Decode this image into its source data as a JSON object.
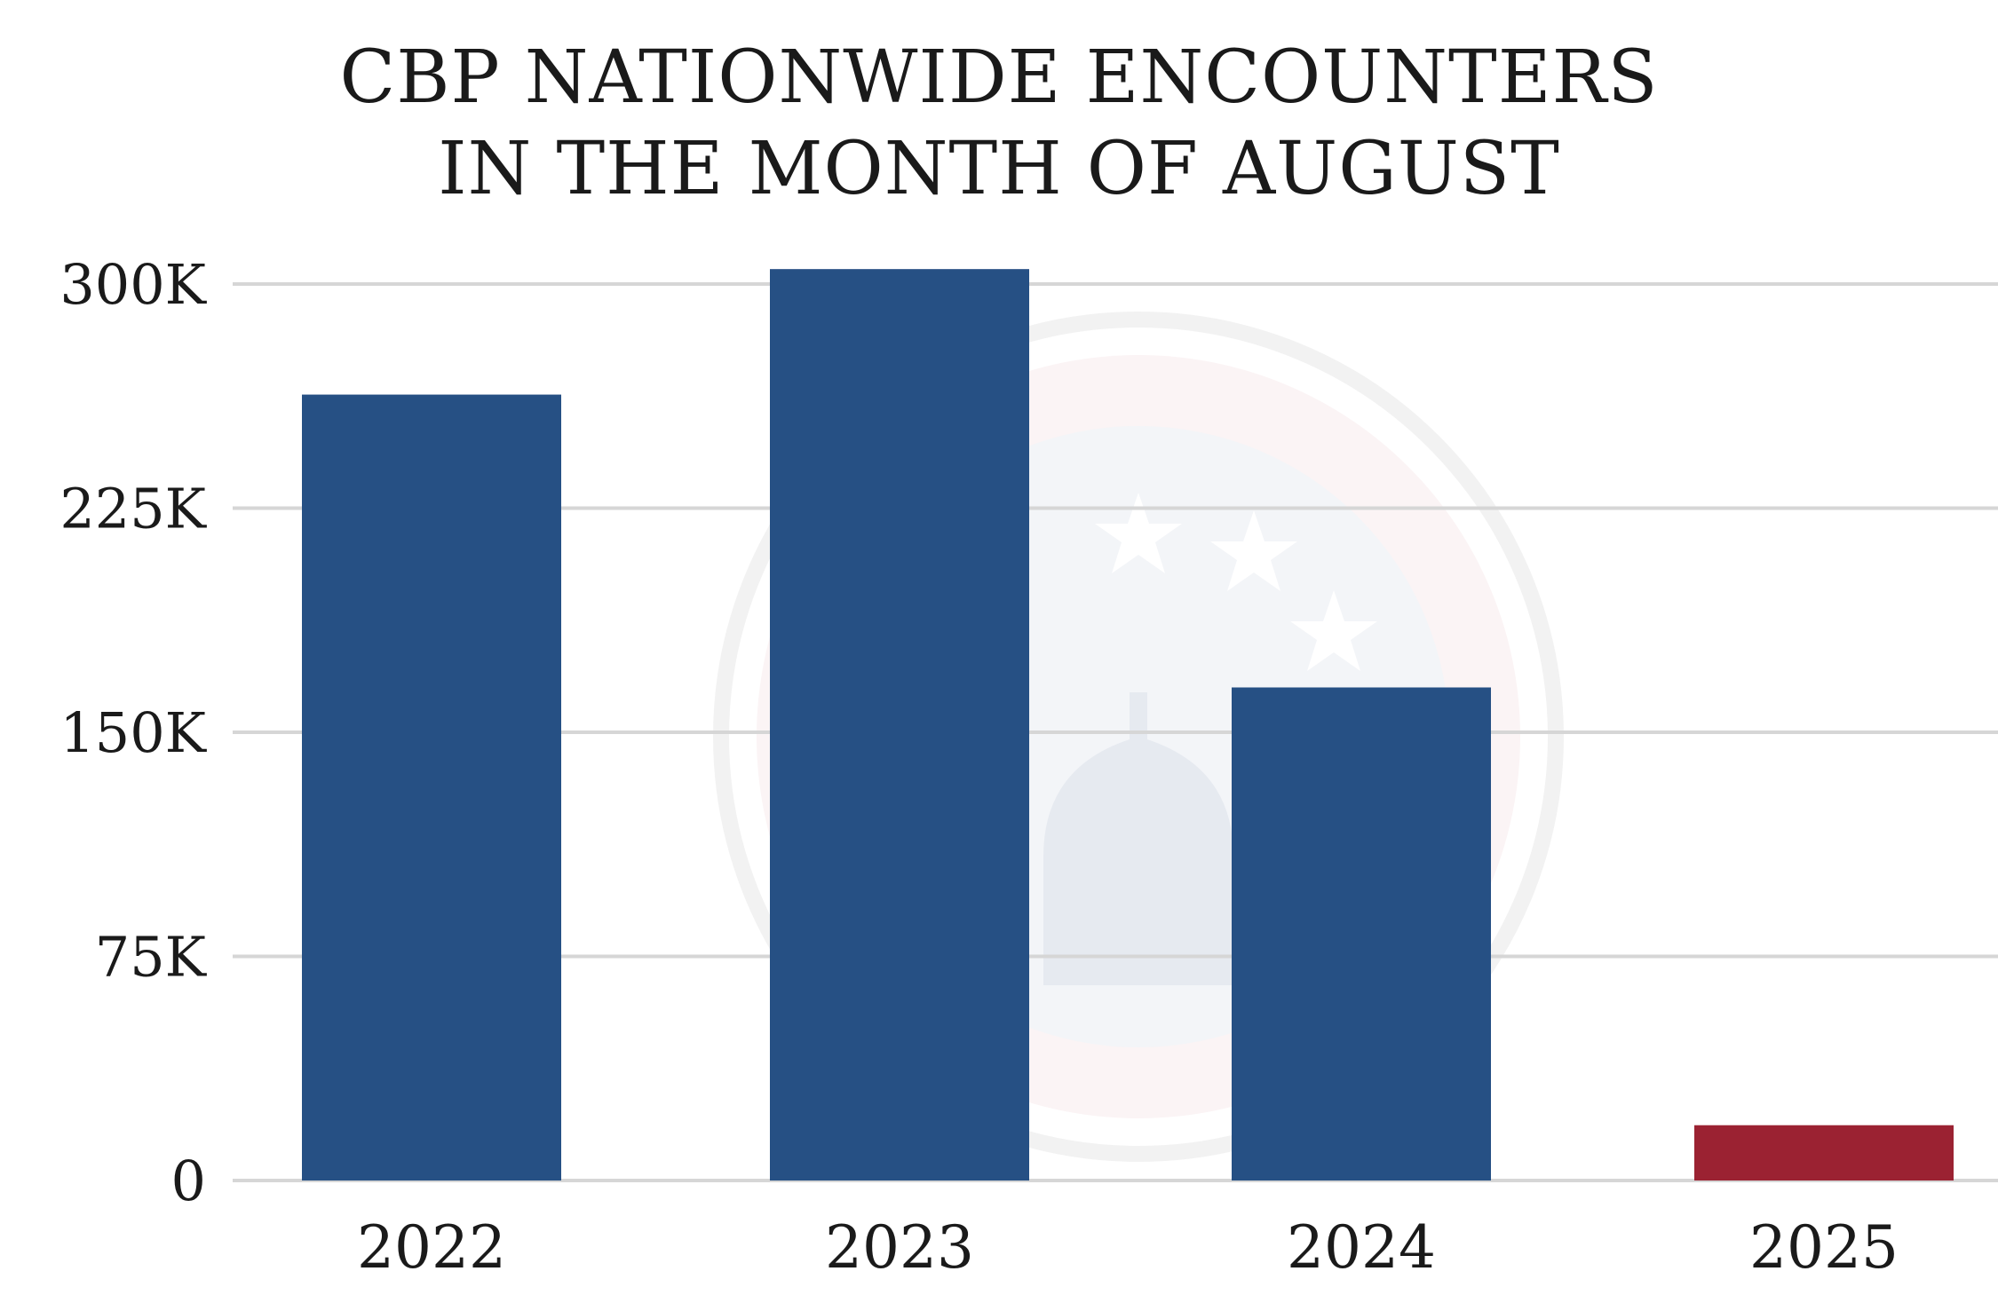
{
  "chart_data": {
    "type": "bar",
    "title": [
      "CBP NATIONWIDE ENCOUNTERS",
      "IN THE MONTH OF AUGUST"
    ],
    "xlabel": "",
    "ylabel": "",
    "categories": [
      "2022",
      "2023",
      "2024",
      "2025"
    ],
    "values": [
      263000,
      305000,
      165000,
      18500
    ],
    "bar_colors": [
      "#265084",
      "#265084",
      "#265084",
      "#9b2232"
    ],
    "ylim": [
      0,
      300000
    ],
    "yticks": [
      0,
      75000,
      150000,
      225000,
      300000
    ],
    "ytick_labels": [
      "0",
      "75K",
      "150K",
      "225K",
      "300K"
    ],
    "grid": true,
    "legend": "none",
    "background_watermark": "homeland-security-seal"
  },
  "colors": {
    "bar_default": "#265084",
    "bar_highlight": "#9b2232",
    "grid": "#d6d6d6",
    "text": "#1a1a1a"
  }
}
